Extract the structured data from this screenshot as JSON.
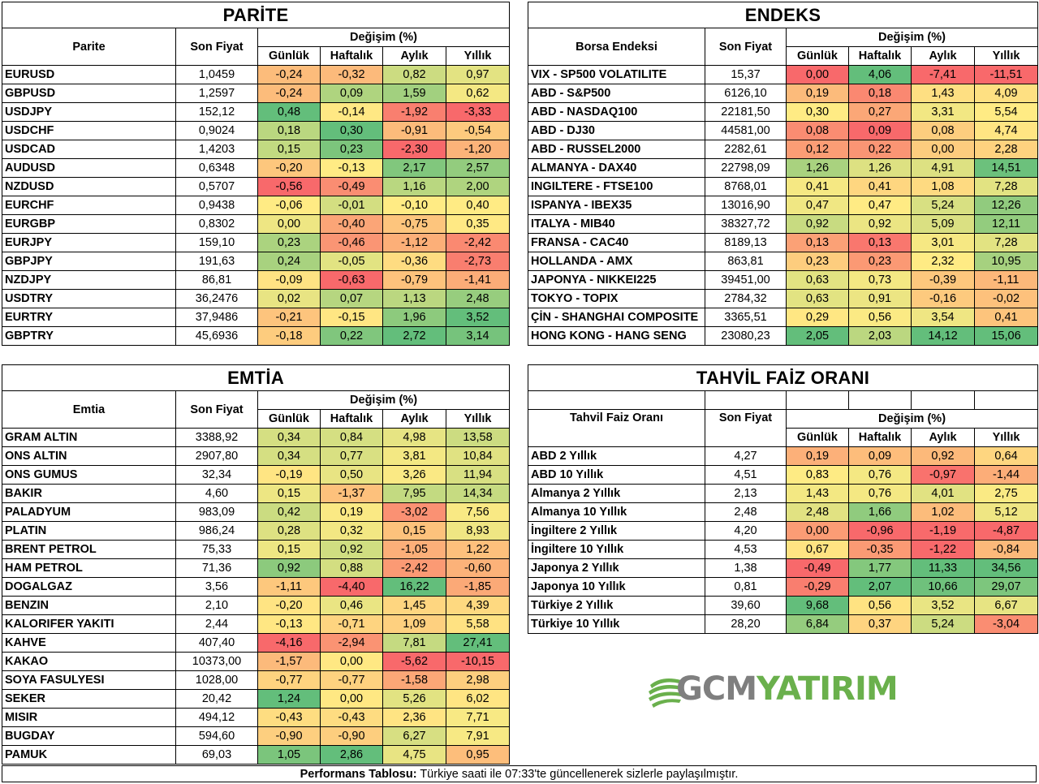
{
  "parite": {
    "title": "PARİTE",
    "col_name": "Parite",
    "col_price": "Son Fiyat",
    "col_change": "Değişim (%)",
    "col_daily": "Günlük",
    "col_weekly": "Haftalık",
    "col_monthly": "Aylık",
    "col_yearly": "Yıllık",
    "rows": [
      {
        "name": "EURUSD",
        "price": "1,0459",
        "d": "-0,24",
        "w": "-0,32",
        "m": "0,82",
        "y": "0,97"
      },
      {
        "name": "GBPUSD",
        "price": "1,2597",
        "d": "-0,24",
        "w": "0,09",
        "m": "1,59",
        "y": "0,62"
      },
      {
        "name": "USDJPY",
        "price": "152,12",
        "d": "0,48",
        "w": "-0,14",
        "m": "-1,92",
        "y": "-3,33"
      },
      {
        "name": "USDCHF",
        "price": "0,9024",
        "d": "0,18",
        "w": "0,30",
        "m": "-0,91",
        "y": "-0,54"
      },
      {
        "name": "USDCAD",
        "price": "1,4203",
        "d": "0,15",
        "w": "0,23",
        "m": "-2,30",
        "y": "-1,20"
      },
      {
        "name": "AUDUSD",
        "price": "0,6348",
        "d": "-0,20",
        "w": "-0,13",
        "m": "2,17",
        "y": "2,57"
      },
      {
        "name": "NZDUSD",
        "price": "0,5707",
        "d": "-0,56",
        "w": "-0,49",
        "m": "1,16",
        "y": "2,00"
      },
      {
        "name": "EURCHF",
        "price": "0,9438",
        "d": "-0,06",
        "w": "-0,01",
        "m": "-0,10",
        "y": "0,40"
      },
      {
        "name": "EURGBP",
        "price": "0,8302",
        "d": "0,00",
        "w": "-0,40",
        "m": "-0,75",
        "y": "0,35"
      },
      {
        "name": "EURJPY",
        "price": "159,10",
        "d": "0,23",
        "w": "-0,46",
        "m": "-1,12",
        "y": "-2,42"
      },
      {
        "name": "GBPJPY",
        "price": "191,63",
        "d": "0,24",
        "w": "-0,05",
        "m": "-0,36",
        "y": "-2,73"
      },
      {
        "name": "NZDJPY",
        "price": "86,81",
        "d": "-0,09",
        "w": "-0,63",
        "m": "-0,79",
        "y": "-1,41"
      },
      {
        "name": "USDTRY",
        "price": "36,2476",
        "d": "0,02",
        "w": "0,07",
        "m": "1,13",
        "y": "2,48"
      },
      {
        "name": "EURTRY",
        "price": "37,9486",
        "d": "-0,21",
        "w": "-0,15",
        "m": "1,96",
        "y": "3,52"
      },
      {
        "name": "GBPTRY",
        "price": "45,6936",
        "d": "-0,18",
        "w": "0,22",
        "m": "2,72",
        "y": "3,14"
      }
    ]
  },
  "endeks": {
    "title": "ENDEKS",
    "col_name": "Borsa Endeksi",
    "col_price": "Son Fiyat",
    "col_change": "Değişim (%)",
    "col_daily": "Günlük",
    "col_weekly": "Haftalık",
    "col_monthly": "Aylık",
    "col_yearly": "Yıllık",
    "rows": [
      {
        "name": "VIX  - SP500 VOLATILITE",
        "price": "15,37",
        "d": "0,00",
        "w": "4,06",
        "m": "-7,41",
        "y": "-11,51"
      },
      {
        "name": "ABD - S&P500",
        "price": "6126,10",
        "d": "0,19",
        "w": "0,18",
        "m": "1,43",
        "y": "4,09"
      },
      {
        "name": "ABD - NASDAQ100",
        "price": "22181,50",
        "d": "0,30",
        "w": "0,27",
        "m": "3,31",
        "y": "5,54"
      },
      {
        "name": "ABD - DJ30",
        "price": "44581,00",
        "d": "0,08",
        "w": "0,09",
        "m": "0,08",
        "y": "4,74"
      },
      {
        "name": "ABD - RUSSEL2000",
        "price": "2282,61",
        "d": "0,12",
        "w": "0,22",
        "m": "0,00",
        "y": "2,28"
      },
      {
        "name": "ALMANYA - DAX40",
        "price": "22798,09",
        "d": "1,26",
        "w": "1,26",
        "m": "4,91",
        "y": "14,51"
      },
      {
        "name": "INGILTERE - FTSE100",
        "price": "8768,01",
        "d": "0,41",
        "w": "0,41",
        "m": "1,08",
        "y": "7,28"
      },
      {
        "name": "ISPANYA - IBEX35",
        "price": "13016,90",
        "d": "0,47",
        "w": "0,47",
        "m": "5,24",
        "y": "12,26"
      },
      {
        "name": "ITALYA - MIB40",
        "price": "38327,72",
        "d": "0,92",
        "w": "0,92",
        "m": "5,09",
        "y": "12,11"
      },
      {
        "name": "FRANSA - CAC40",
        "price": "8189,13",
        "d": "0,13",
        "w": "0,13",
        "m": "3,01",
        "y": "7,28"
      },
      {
        "name": "HOLLANDA - AMX",
        "price": "863,81",
        "d": "0,23",
        "w": "0,23",
        "m": "2,32",
        "y": "10,95"
      },
      {
        "name": "JAPONYA - NIKKEI225",
        "price": "39451,00",
        "d": "0,63",
        "w": "0,73",
        "m": "-0,39",
        "y": "-1,11"
      },
      {
        "name": "TOKYO - TOPIX",
        "price": "2784,32",
        "d": "0,63",
        "w": "0,91",
        "m": "-0,16",
        "y": "-0,02"
      },
      {
        "name": "ÇİN - SHANGHAI COMPOSITE",
        "price": "3365,51",
        "d": "0,29",
        "w": "0,56",
        "m": "3,54",
        "y": "0,41"
      },
      {
        "name": "HONG KONG - HANG SENG",
        "price": "23080,23",
        "d": "2,05",
        "w": "2,03",
        "m": "14,12",
        "y": "15,06"
      }
    ]
  },
  "emtia": {
    "title": "EMTİA",
    "col_name": "Emtia",
    "col_price": "Son Fiyat",
    "col_change": "Değişim (%)",
    "col_daily": "Günlük",
    "col_weekly": "Haftalık",
    "col_monthly": "Aylık",
    "col_yearly": "Yıllık",
    "rows": [
      {
        "name": "GRAM ALTIN",
        "price": "3388,92",
        "d": "0,34",
        "w": "0,84",
        "m": "4,98",
        "y": "13,58"
      },
      {
        "name": "ONS ALTIN",
        "price": "2907,80",
        "d": "0,34",
        "w": "0,77",
        "m": "3,81",
        "y": "10,84"
      },
      {
        "name": "ONS GUMUS",
        "price": "32,34",
        "d": "-0,19",
        "w": "0,50",
        "m": "3,26",
        "y": "11,94"
      },
      {
        "name": "BAKIR",
        "price": "4,60",
        "d": "0,15",
        "w": "-1,37",
        "m": "7,95",
        "y": "14,34"
      },
      {
        "name": "PALADYUM",
        "price": "983,09",
        "d": "0,42",
        "w": "0,19",
        "m": "-3,02",
        "y": "7,56"
      },
      {
        "name": "PLATIN",
        "price": "986,24",
        "d": "0,28",
        "w": "0,32",
        "m": "0,15",
        "y": "8,93"
      },
      {
        "name": "BRENT PETROL",
        "price": "75,33",
        "d": "0,15",
        "w": "0,92",
        "m": "-1,05",
        "y": "1,22"
      },
      {
        "name": "HAM PETROL",
        "price": "71,36",
        "d": "0,92",
        "w": "0,88",
        "m": "-2,42",
        "y": "-0,60"
      },
      {
        "name": "DOGALGAZ",
        "price": "3,56",
        "d": "-1,11",
        "w": "-4,40",
        "m": "16,22",
        "y": "-1,85"
      },
      {
        "name": "BENZIN",
        "price": "2,10",
        "d": "-0,20",
        "w": "0,46",
        "m": "1,45",
        "y": "4,39"
      },
      {
        "name": "KALORIFER YAKITI",
        "price": "2,44",
        "d": "-0,13",
        "w": "-0,71",
        "m": "1,09",
        "y": "5,58"
      },
      {
        "name": "KAHVE",
        "price": "407,40",
        "d": "-4,16",
        "w": "-2,94",
        "m": "7,81",
        "y": "27,41"
      },
      {
        "name": "KAKAO",
        "price": "10373,00",
        "d": "-1,57",
        "w": "0,00",
        "m": "-5,62",
        "y": "-10,15"
      },
      {
        "name": "SOYA FASULYESI",
        "price": "1028,00",
        "d": "-0,77",
        "w": "-0,77",
        "m": "-1,58",
        "y": "2,98"
      },
      {
        "name": "SEKER",
        "price": "20,42",
        "d": "1,24",
        "w": "0,00",
        "m": "5,26",
        "y": "6,02"
      },
      {
        "name": "MISIR",
        "price": "494,12",
        "d": "-0,43",
        "w": "-0,43",
        "m": "2,36",
        "y": "7,71"
      },
      {
        "name": "BUGDAY",
        "price": "594,60",
        "d": "-0,90",
        "w": "-0,90",
        "m": "6,27",
        "y": "7,91"
      },
      {
        "name": "PAMUK",
        "price": "69,03",
        "d": "1,05",
        "w": "2,86",
        "m": "4,75",
        "y": "0,95"
      }
    ]
  },
  "tahvil": {
    "title": "TAHVİL FAİZ ORANI",
    "col_name": "Tahvil Faiz Oranı",
    "col_price": "Son Fiyat",
    "col_change": "Değişim (%)",
    "col_daily": "Günlük",
    "col_weekly": "Haftalık",
    "col_monthly": "Aylık",
    "col_yearly": "Yıllık",
    "rows": [
      {
        "name": "ABD 2 Yıllık",
        "price": "4,27",
        "d": "0,19",
        "w": "0,09",
        "m": "0,92",
        "y": "0,64"
      },
      {
        "name": "ABD 10 Yıllık",
        "price": "4,51",
        "d": "0,83",
        "w": "0,76",
        "m": "-0,97",
        "y": "-1,44"
      },
      {
        "name": "Almanya 2 Yıllık",
        "price": "2,13",
        "d": "1,43",
        "w": "0,76",
        "m": "4,01",
        "y": "2,75"
      },
      {
        "name": "Almanya 10 Yıllık",
        "price": "2,48",
        "d": "2,48",
        "w": "1,66",
        "m": "1,02",
        "y": "5,12"
      },
      {
        "name": "İngiltere 2 Yıllık",
        "price": "4,20",
        "d": "0,00",
        "w": "-0,96",
        "m": "-1,19",
        "y": "-4,87"
      },
      {
        "name": "İngiltere 10 Yıllık",
        "price": "4,53",
        "d": "0,67",
        "w": "-0,35",
        "m": "-1,22",
        "y": "-0,84"
      },
      {
        "name": "Japonya 2 Yıllık",
        "price": "1,38",
        "d": "-0,49",
        "w": "1,77",
        "m": "11,33",
        "y": "34,56"
      },
      {
        "name": "Japonya 10 Yıllık",
        "price": "0,81",
        "d": "-0,29",
        "w": "2,07",
        "m": "10,66",
        "y": "29,07"
      },
      {
        "name": "Türkiye 2 Yıllık",
        "price": "39,60",
        "d": "9,68",
        "w": "0,56",
        "m": "3,52",
        "y": "6,67"
      },
      {
        "name": "Türkiye 10 Yıllık",
        "price": "28,20",
        "d": "6,84",
        "w": "0,37",
        "m": "5,24",
        "y": "-3,04"
      }
    ]
  },
  "logo": {
    "gcm": "GCM",
    "yatirim": "YATIRIM"
  },
  "footer": {
    "bold": "Performans Tablosu:",
    "text": " Türkiye saati ile 07:33'te güncellenerek sizlerle paylaşılmıştır."
  },
  "colors": {
    "red": "#f8696b",
    "yellow": "#ffeb84",
    "green": "#63be7b"
  }
}
